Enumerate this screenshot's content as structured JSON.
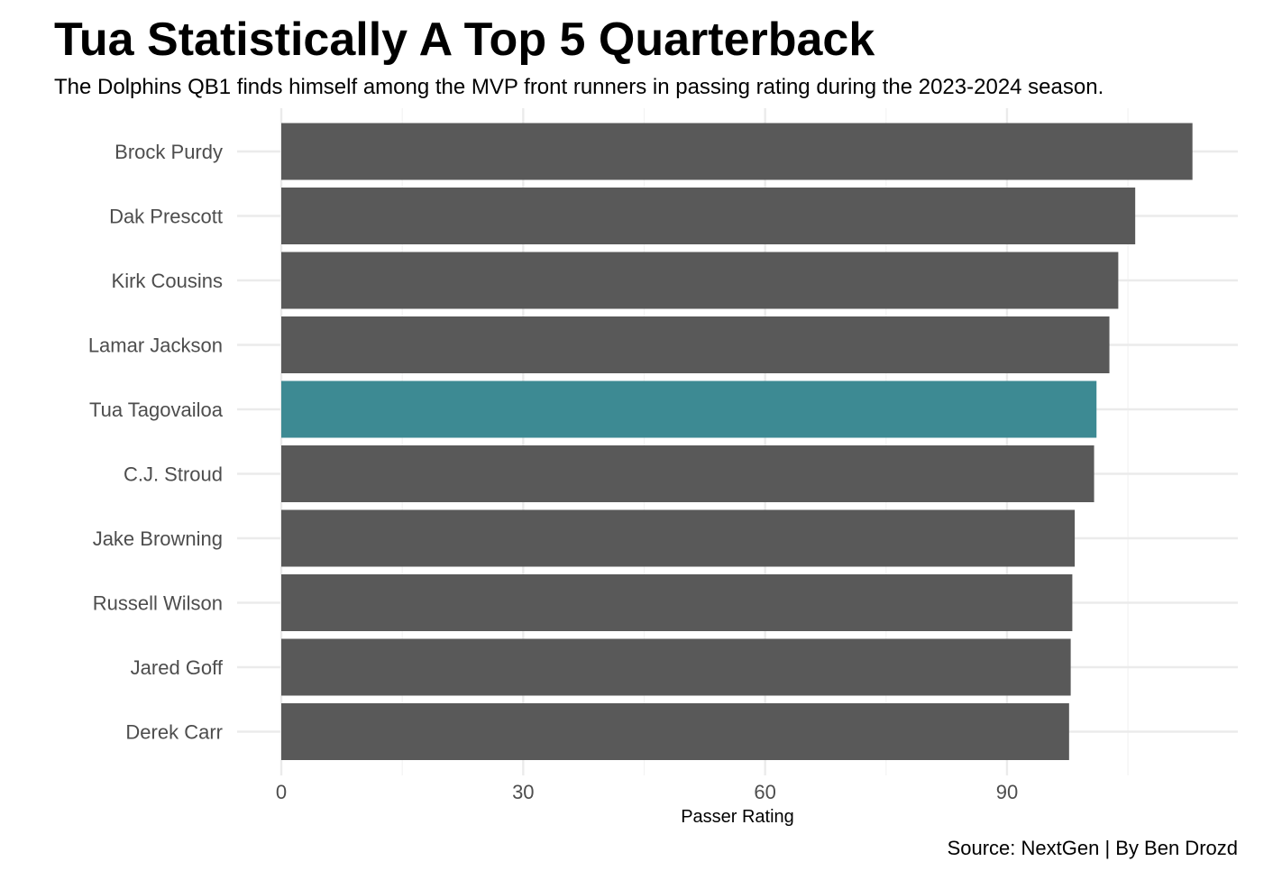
{
  "chart_data": {
    "type": "bar",
    "orientation": "horizontal",
    "title": "Tua Statistically A Top 5 Quarterback",
    "subtitle": "The Dolphins QB1 finds himself among the MVP front runners in passing rating during the 2023-2024 season.",
    "xlabel": "Passer Rating",
    "ylabel": "",
    "caption": "Source: NextGen | By Ben Drozd",
    "categories": [
      "Brock Purdy",
      "Dak Prescott",
      "Kirk Cousins",
      "Lamar Jackson",
      "Tua Tagovailoa",
      "C.J. Stroud",
      "Jake Browning",
      "Russell Wilson",
      "Jared Goff",
      "Derek Carr"
    ],
    "values": [
      113.0,
      105.9,
      103.8,
      102.7,
      101.1,
      100.8,
      98.4,
      98.1,
      97.9,
      97.7
    ],
    "highlight": "Tua Tagovailoa",
    "xlim": [
      0,
      119.4
    ],
    "xticks": [
      0,
      30,
      60,
      90
    ],
    "grid": true,
    "legend": "none",
    "colors": {
      "bar": "#595959",
      "highlight": "#3d8a93"
    }
  }
}
